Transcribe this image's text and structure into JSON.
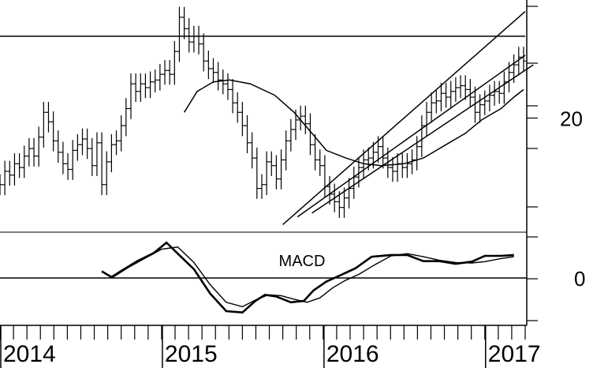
{
  "chart_data": [
    {
      "type": "ohlc",
      "panel": "price",
      "title": "",
      "xlabel": "",
      "ylabel": "",
      "x_ticks": [
        "2014",
        "2015",
        "2016",
        "2017"
      ],
      "x_range": [
        2014.0,
        2017.25
      ],
      "ylim": [
        14,
        26
      ],
      "y_ticks": [
        20
      ],
      "grid": false,
      "series": [
        {
          "kind": "ohlc",
          "points": [
            [
              2014.0,
              16.5
            ],
            [
              2014.03,
              17.2
            ],
            [
              2014.06,
              17.0
            ],
            [
              2014.09,
              17.6
            ],
            [
              2014.12,
              17.4
            ],
            [
              2014.15,
              18.0
            ],
            [
              2014.18,
              18.4
            ],
            [
              2014.21,
              18.0
            ],
            [
              2014.24,
              19.0
            ],
            [
              2014.27,
              20.3
            ],
            [
              2014.3,
              19.8
            ],
            [
              2014.33,
              18.8
            ],
            [
              2014.36,
              18.2
            ],
            [
              2014.39,
              17.6
            ],
            [
              2014.42,
              17.3
            ],
            [
              2014.45,
              18.3
            ],
            [
              2014.48,
              18.6
            ],
            [
              2014.51,
              18.9
            ],
            [
              2014.54,
              18.4
            ],
            [
              2014.57,
              17.5
            ],
            [
              2014.6,
              18.7
            ],
            [
              2014.63,
              16.5
            ],
            [
              2014.66,
              17.7
            ],
            [
              2014.69,
              18.6
            ],
            [
              2014.72,
              18.8
            ],
            [
              2014.75,
              19.6
            ],
            [
              2014.78,
              20.5
            ],
            [
              2014.81,
              21.8
            ],
            [
              2014.84,
              21.4
            ],
            [
              2014.87,
              21.8
            ],
            [
              2014.9,
              21.6
            ],
            [
              2014.93,
              21.9
            ],
            [
              2014.96,
              22.0
            ],
            [
              2014.99,
              22.3
            ],
            [
              2015.02,
              22.5
            ],
            [
              2015.05,
              22.3
            ],
            [
              2015.08,
              23.5
            ],
            [
              2015.11,
              25.3
            ],
            [
              2015.14,
              24.7
            ],
            [
              2015.17,
              24.0
            ],
            [
              2015.2,
              24.3
            ],
            [
              2015.23,
              23.9
            ],
            [
              2015.26,
              23.0
            ],
            [
              2015.29,
              22.6
            ],
            [
              2015.32,
              22.4
            ],
            [
              2015.35,
              22.0
            ],
            [
              2015.38,
              21.8
            ],
            [
              2015.41,
              21.5
            ],
            [
              2015.44,
              20.8
            ],
            [
              2015.47,
              20.3
            ],
            [
              2015.5,
              19.6
            ],
            [
              2015.53,
              18.7
            ],
            [
              2015.56,
              17.9
            ],
            [
              2015.59,
              16.3
            ],
            [
              2015.62,
              16.5
            ],
            [
              2015.65,
              17.7
            ],
            [
              2015.68,
              17.5
            ],
            [
              2015.71,
              16.8
            ],
            [
              2015.74,
              17.8
            ],
            [
              2015.77,
              18.8
            ],
            [
              2015.8,
              19.4
            ],
            [
              2015.83,
              19.9
            ],
            [
              2015.86,
              20.1
            ],
            [
              2015.89,
              19.7
            ],
            [
              2015.92,
              18.6
            ],
            [
              2015.95,
              17.8
            ],
            [
              2015.98,
              17.5
            ],
            [
              2016.01,
              16.4
            ],
            [
              2016.04,
              16.0
            ],
            [
              2016.07,
              15.6
            ],
            [
              2016.1,
              15.3
            ],
            [
              2016.13,
              15.8
            ],
            [
              2016.16,
              16.3
            ],
            [
              2016.19,
              16.9
            ],
            [
              2016.22,
              17.4
            ],
            [
              2016.25,
              17.8
            ],
            [
              2016.28,
              17.9
            ],
            [
              2016.31,
              18.2
            ],
            [
              2016.34,
              18.5
            ],
            [
              2016.37,
              17.9
            ],
            [
              2016.4,
              17.4
            ],
            [
              2016.43,
              17.2
            ],
            [
              2016.46,
              17.6
            ],
            [
              2016.49,
              17.4
            ],
            [
              2016.52,
              17.6
            ],
            [
              2016.55,
              17.8
            ],
            [
              2016.58,
              18.5
            ],
            [
              2016.61,
              19.6
            ],
            [
              2016.64,
              20.3
            ],
            [
              2016.67,
              20.8
            ],
            [
              2016.7,
              20.9
            ],
            [
              2016.73,
              21.3
            ],
            [
              2016.76,
              21.1
            ],
            [
              2016.79,
              21.4
            ],
            [
              2016.82,
              21.6
            ],
            [
              2016.85,
              21.7
            ],
            [
              2016.88,
              21.5
            ],
            [
              2016.91,
              21.1
            ],
            [
              2016.94,
              20.3
            ],
            [
              2016.97,
              20.7
            ],
            [
              2017.0,
              20.9
            ],
            [
              2017.03,
              21.2
            ],
            [
              2017.06,
              21.4
            ],
            [
              2017.09,
              21.3
            ],
            [
              2017.12,
              21.9
            ],
            [
              2017.15,
              22.4
            ],
            [
              2017.18,
              22.8
            ],
            [
              2017.21,
              23.2
            ],
            [
              2017.24,
              23.0
            ]
          ]
        },
        {
          "kind": "line",
          "points": [
            [
              2015.14,
              20.3
            ],
            [
              2015.22,
              21.4
            ],
            [
              2015.32,
              21.9
            ],
            [
              2015.42,
              22.0
            ],
            [
              2015.55,
              21.8
            ],
            [
              2015.7,
              21.2
            ],
            [
              2015.82,
              20.3
            ],
            [
              2015.92,
              19.3
            ],
            [
              2016.02,
              18.3
            ],
            [
              2016.14,
              17.9
            ],
            [
              2016.25,
              17.6
            ],
            [
              2016.36,
              17.5
            ],
            [
              2016.5,
              17.6
            ],
            [
              2016.62,
              17.9
            ],
            [
              2016.76,
              18.6
            ],
            [
              2016.88,
              19.2
            ],
            [
              2016.98,
              19.9
            ],
            [
              2017.1,
              20.5
            ],
            [
              2017.18,
              21.1
            ],
            [
              2017.24,
              21.5
            ]
          ]
        },
        {
          "kind": "line",
          "points": [
            [
              2014.0,
              24.3
            ],
            [
              2017.25,
              24.3
            ]
          ]
        },
        {
          "kind": "line",
          "points": [
            [
              2015.84,
              14.8
            ],
            [
              2017.25,
              23.3
            ]
          ]
        },
        {
          "kind": "line",
          "points": [
            [
              2015.93,
              15.0
            ],
            [
              2017.3,
              22.8
            ]
          ]
        },
        {
          "kind": "line",
          "points": [
            [
              2015.75,
              14.4
            ],
            [
              2017.25,
              25.6
            ]
          ]
        }
      ]
    },
    {
      "type": "line",
      "panel": "indicator",
      "title": "MACD",
      "xlabel": "",
      "ylabel": "",
      "ylim": [
        -1.0,
        1.0
      ],
      "y_ticks": [
        0
      ],
      "grid": false,
      "series": [
        {
          "x": [
            2014.63,
            2014.69,
            2014.76,
            2014.85,
            2014.95,
            2015.03,
            2015.1,
            2015.2,
            2015.3,
            2015.4,
            2015.5,
            2015.58,
            2015.64,
            2015.71,
            2015.8,
            2015.88,
            2015.94,
            2016.02,
            2016.1,
            2016.2,
            2016.3,
            2016.42,
            2016.52,
            2016.62,
            2016.72,
            2016.82,
            2016.92,
            2017.0,
            2017.1,
            2017.18
          ],
          "y": [
            0.15,
            0.02,
            0.18,
            0.38,
            0.56,
            0.8,
            0.55,
            0.2,
            -0.35,
            -0.75,
            -0.78,
            -0.52,
            -0.38,
            -0.42,
            -0.55,
            -0.52,
            -0.28,
            -0.08,
            0.05,
            0.22,
            0.48,
            0.52,
            0.52,
            0.38,
            0.38,
            0.32,
            0.37,
            0.5,
            0.5,
            0.52
          ]
        },
        {
          "x": [
            2014.7,
            2014.8,
            2014.9,
            2015.0,
            2015.1,
            2015.2,
            2015.3,
            2015.4,
            2015.5,
            2015.58,
            2015.66,
            2015.74,
            2015.82,
            2015.9,
            2015.98,
            2016.06,
            2016.14,
            2016.22,
            2016.32,
            2016.42,
            2016.52,
            2016.62,
            2016.72,
            2016.82,
            2016.92,
            2017.0,
            2017.1,
            2017.18
          ],
          "y": [
            0.02,
            0.25,
            0.45,
            0.65,
            0.7,
            0.35,
            -0.15,
            -0.55,
            -0.65,
            -0.5,
            -0.38,
            -0.4,
            -0.48,
            -0.55,
            -0.45,
            -0.22,
            -0.05,
            0.08,
            0.3,
            0.5,
            0.55,
            0.48,
            0.4,
            0.35,
            0.34,
            0.37,
            0.44,
            0.48
          ]
        }
      ]
    }
  ]
}
